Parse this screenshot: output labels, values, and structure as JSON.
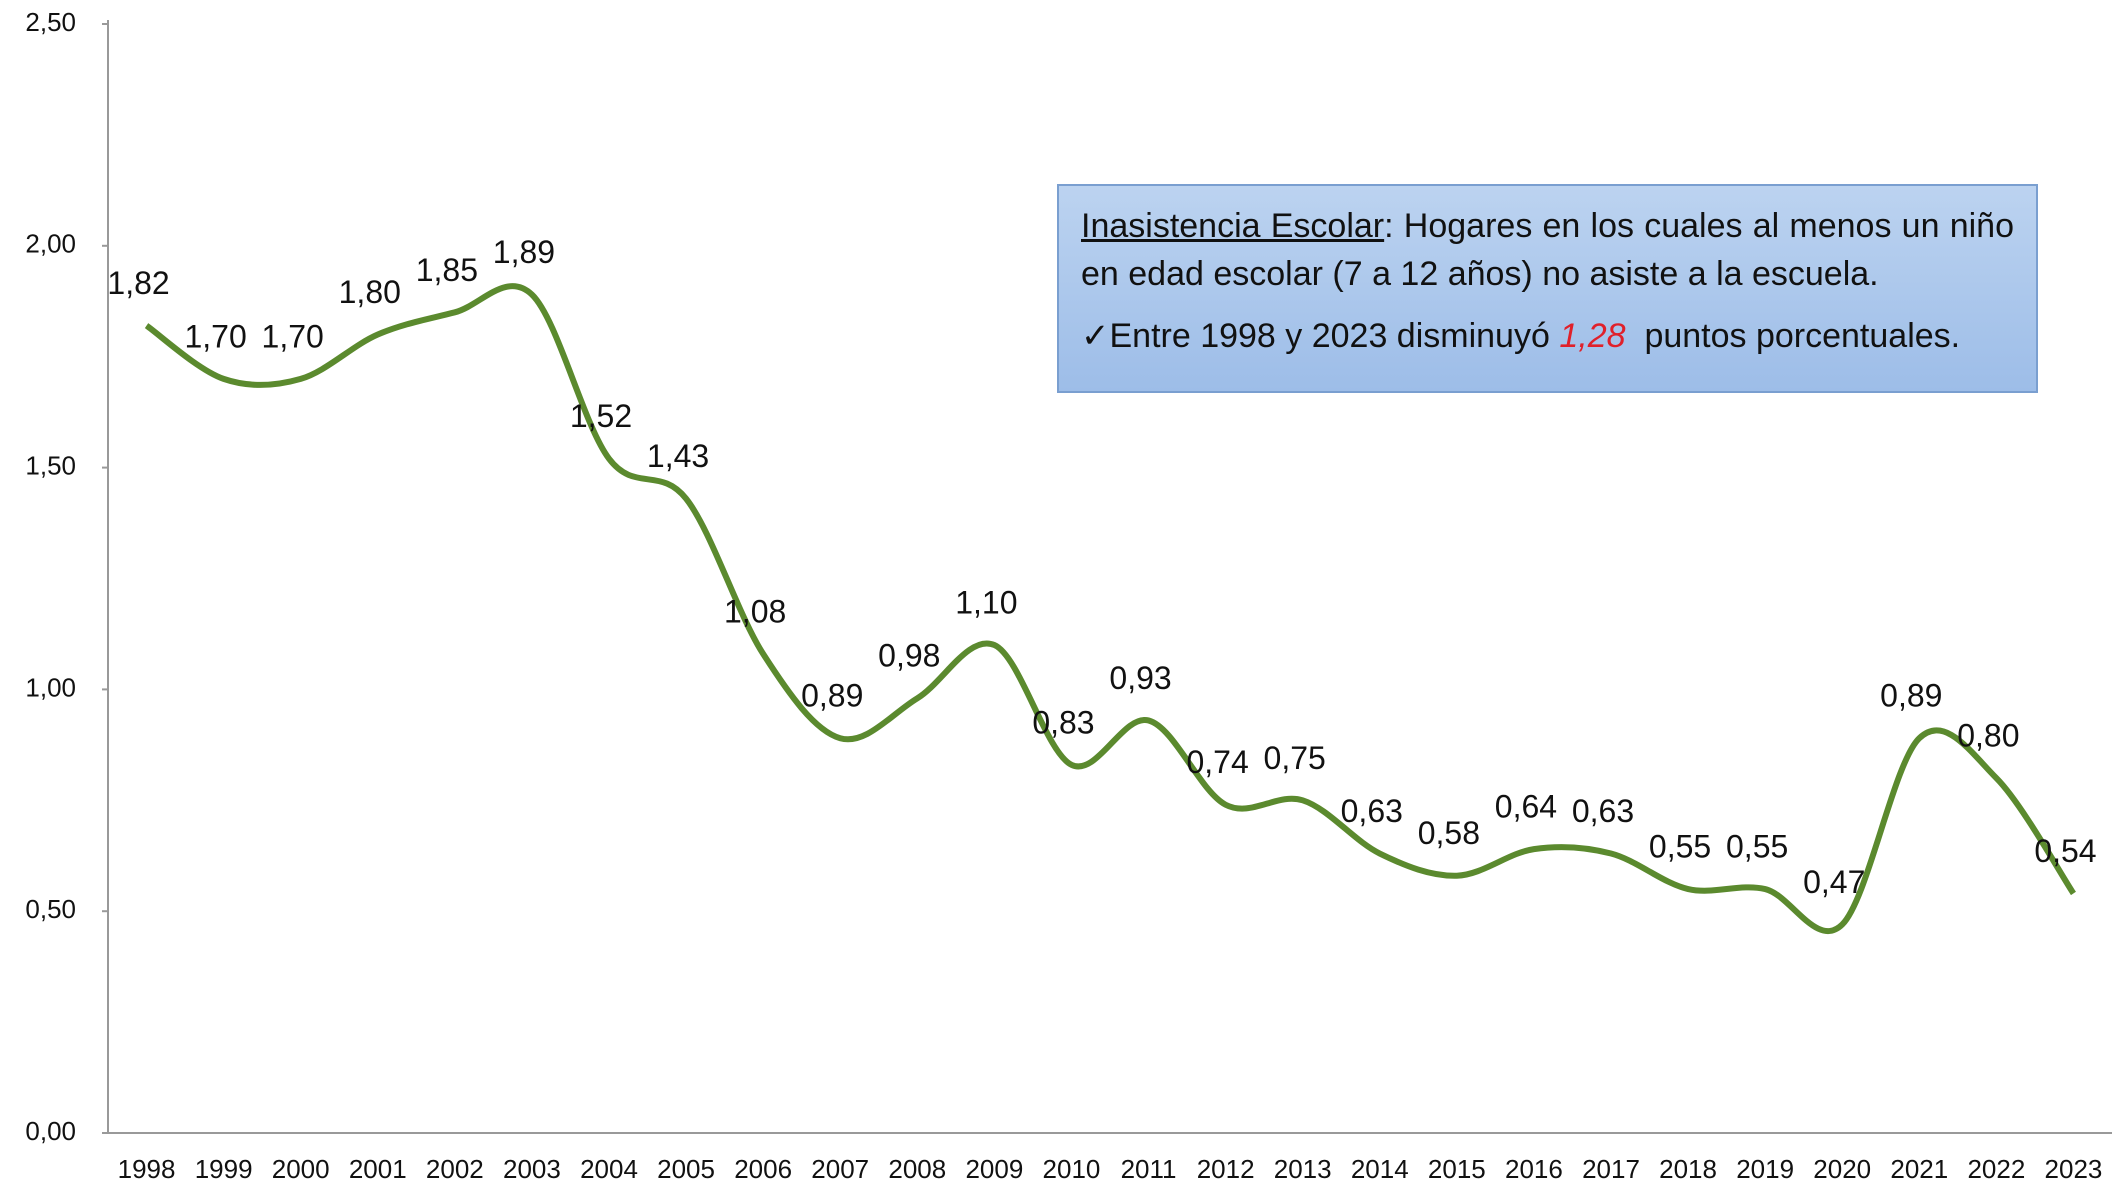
{
  "chart_data": {
    "type": "line",
    "categories": [
      "1998",
      "1999",
      "2000",
      "2001",
      "2002",
      "2003",
      "2004",
      "2005",
      "2006",
      "2007",
      "2008",
      "2009",
      "2010",
      "2011",
      "2012",
      "2013",
      "2014",
      "2015",
      "2016",
      "2017",
      "2018",
      "2019",
      "2020",
      "2021",
      "2022",
      "2023"
    ],
    "series": [
      {
        "color": "#5b8a2e",
        "values": [
          1.82,
          1.7,
          1.7,
          1.8,
          1.85,
          1.89,
          1.52,
          1.43,
          1.08,
          0.89,
          0.98,
          1.1,
          0.83,
          0.93,
          0.74,
          0.75,
          0.63,
          0.58,
          0.64,
          0.63,
          0.55,
          0.55,
          0.47,
          0.89,
          0.8,
          0.54
        ],
        "value_labels": [
          "1,82",
          "1,70",
          "1,70",
          "1,80",
          "1,85",
          "1,89",
          "1,52",
          "1,43",
          "1,08",
          "0,89",
          "0,98",
          "1,10",
          "0,83",
          "0,93",
          "0,74",
          "0,75",
          "0,63",
          "0,58",
          "0,64",
          "0,63",
          "0,55",
          "0,55",
          "0,47",
          "0,89",
          "0,80",
          "0,54"
        ]
      }
    ],
    "ylim": [
      0,
      2.5
    ],
    "yticks": [
      {
        "value": 0,
        "label": "0,00"
      },
      {
        "value": 0.5,
        "label": "0,50"
      },
      {
        "value": 1,
        "label": "1,00"
      },
      {
        "value": 1.5,
        "label": "1,50"
      },
      {
        "value": 2,
        "label": "2,00"
      },
      {
        "value": 2.5,
        "label": "2,50"
      }
    ],
    "grid": false,
    "smooth": true,
    "annotation": {
      "term": "Inasistencia Escolar",
      "definition": ": Hogares en los cuales al menos un niño en edad escolar (7 a 12 años) no asiste a la escuela.",
      "note_start": "✓Entre 1998 y 2023 disminuyó",
      "note_value": "1,28",
      "note_end": "puntos porcentuales."
    }
  }
}
